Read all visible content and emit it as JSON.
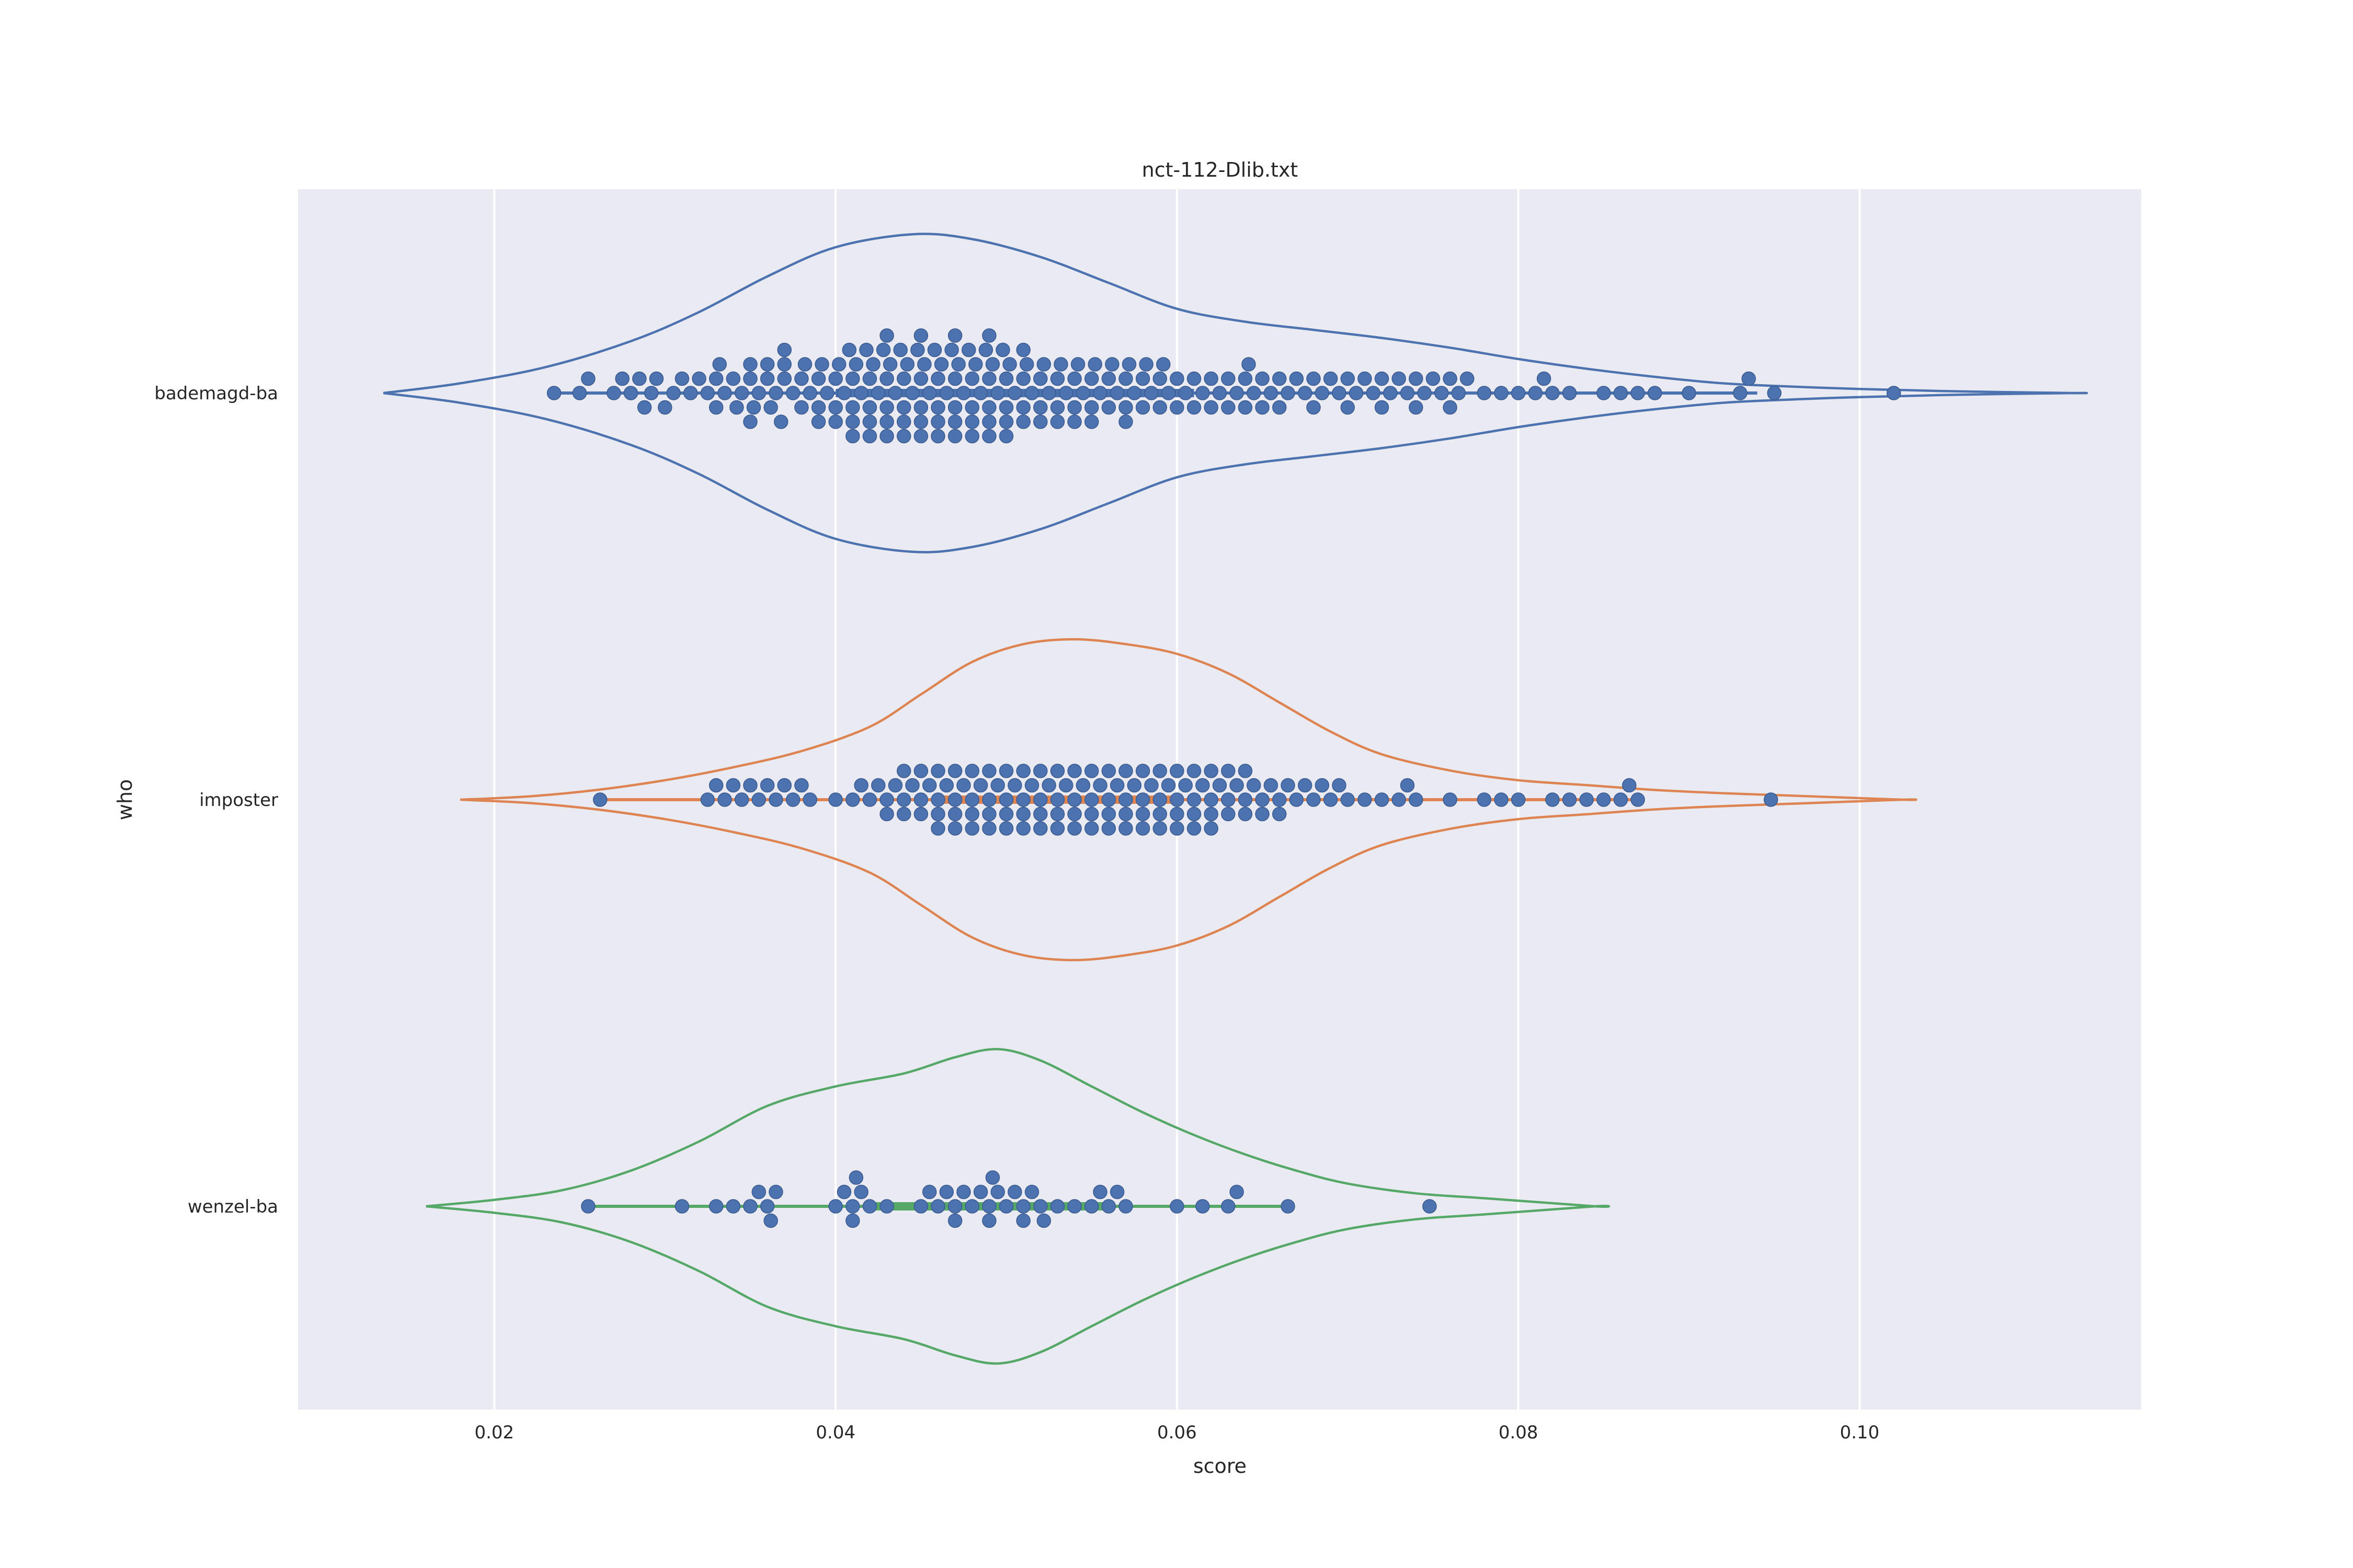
{
  "chart_data": {
    "type": "violin+swarm",
    "title": "nct-112-Dlib.txt",
    "xlabel": "score",
    "ylabel": "who",
    "xlim": [
      0.0085,
      0.1165
    ],
    "xticks": [
      0.02,
      0.04,
      0.06,
      0.08,
      0.1
    ],
    "xtick_labels": [
      "0.02",
      "0.04",
      "0.06",
      "0.08",
      "0.10"
    ],
    "grid": true,
    "point_color": "#4c72b0",
    "categories": [
      "bademagd-ba",
      "imposter",
      "wenzel-ba"
    ],
    "series": [
      {
        "name": "bademagd-ba",
        "color": "#4c72b0",
        "violin_range": [
          0.0135,
          0.1125
        ],
        "violin_profile": [
          [
            0.0135,
            0.0
          ],
          [
            0.018,
            0.06
          ],
          [
            0.023,
            0.16
          ],
          [
            0.028,
            0.32
          ],
          [
            0.032,
            0.5
          ],
          [
            0.036,
            0.72
          ],
          [
            0.04,
            0.9
          ],
          [
            0.0445,
            0.98
          ],
          [
            0.048,
            0.95
          ],
          [
            0.052,
            0.84
          ],
          [
            0.056,
            0.68
          ],
          [
            0.06,
            0.52
          ],
          [
            0.064,
            0.44
          ],
          [
            0.068,
            0.39
          ],
          [
            0.072,
            0.34
          ],
          [
            0.076,
            0.28
          ],
          [
            0.08,
            0.21
          ],
          [
            0.084,
            0.15
          ],
          [
            0.088,
            0.1
          ],
          [
            0.092,
            0.06
          ],
          [
            0.096,
            0.04
          ],
          [
            0.1,
            0.025
          ],
          [
            0.106,
            0.01
          ],
          [
            0.1125,
            0.0
          ]
        ],
        "quartiles": [
          0.04,
          0.049,
          0.061
        ],
        "points": [
          0.0235,
          0.025,
          0.0255,
          0.027,
          0.0275,
          0.028,
          0.0285,
          0.0288,
          0.0292,
          0.0295,
          0.03,
          0.0305,
          0.031,
          0.0315,
          0.032,
          0.0325,
          0.033,
          0.0332,
          0.0335,
          0.034,
          0.0342,
          0.0345,
          0.035,
          0.0352,
          0.0355,
          0.036,
          0.0362,
          0.0365,
          0.0368,
          0.037,
          0.0375,
          0.038,
          0.0382,
          0.0385,
          0.039,
          0.0392,
          0.0395,
          0.04,
          0.0402,
          0.0405,
          0.0408,
          0.041,
          0.0412,
          0.0415,
          0.0418,
          0.042,
          0.0422,
          0.0425,
          0.0428,
          0.043,
          0.0432,
          0.0435,
          0.0438,
          0.044,
          0.0442,
          0.0445,
          0.0448,
          0.045,
          0.0452,
          0.0455,
          0.0458,
          0.046,
          0.0462,
          0.0465,
          0.0468,
          0.047,
          0.0472,
          0.0475,
          0.0478,
          0.048,
          0.0482,
          0.0485,
          0.0488,
          0.049,
          0.0492,
          0.0495,
          0.0498,
          0.05,
          0.0502,
          0.0505,
          0.051,
          0.0512,
          0.0515,
          0.052,
          0.0522,
          0.0525,
          0.053,
          0.0532,
          0.0535,
          0.054,
          0.0542,
          0.0545,
          0.055,
          0.0552,
          0.0555,
          0.056,
          0.0562,
          0.0565,
          0.057,
          0.0572,
          0.0575,
          0.058,
          0.0582,
          0.0585,
          0.059,
          0.0592,
          0.0595,
          0.06,
          0.0605,
          0.061,
          0.0615,
          0.062,
          0.0625,
          0.063,
          0.0635,
          0.064,
          0.0642,
          0.0645,
          0.065,
          0.0655,
          0.066,
          0.0665,
          0.067,
          0.0675,
          0.068,
          0.0685,
          0.069,
          0.0695,
          0.07,
          0.0705,
          0.071,
          0.0715,
          0.072,
          0.0725,
          0.073,
          0.0735,
          0.074,
          0.0745,
          0.075,
          0.0755,
          0.076,
          0.0765,
          0.077,
          0.078,
          0.079,
          0.08,
          0.081,
          0.0815,
          0.082,
          0.083,
          0.085,
          0.086,
          0.087,
          0.088,
          0.09,
          0.093,
          0.0935,
          0.095,
          0.102,
          0.036,
          0.038,
          0.04,
          0.042,
          0.044,
          0.046,
          0.048,
          0.05,
          0.052,
          0.054,
          0.056,
          0.058,
          0.04,
          0.042,
          0.044,
          0.046,
          0.048,
          0.05,
          0.052,
          0.054,
          0.043,
          0.045,
          0.047,
          0.049,
          0.051,
          0.053,
          0.041,
          0.043,
          0.045,
          0.047,
          0.049,
          0.042,
          0.044,
          0.046,
          0.048,
          0.05,
          0.055,
          0.057,
          0.059,
          0.061,
          0.063,
          0.065,
          0.06,
          0.062,
          0.064,
          0.066,
          0.068,
          0.07,
          0.072,
          0.074,
          0.076,
          0.035,
          0.037,
          0.039,
          0.041,
          0.043,
          0.045,
          0.047,
          0.049,
          0.051,
          0.053,
          0.055,
          0.057,
          0.033,
          0.035,
          0.037,
          0.039,
          0.041,
          0.043,
          0.045,
          0.047,
          0.049,
          0.051
        ]
      },
      {
        "name": "imposter",
        "color": "#dd8452",
        "violin_range": [
          0.018,
          0.1025
        ],
        "violin_profile": [
          [
            0.018,
            0.0
          ],
          [
            0.022,
            0.02
          ],
          [
            0.026,
            0.06
          ],
          [
            0.03,
            0.12
          ],
          [
            0.034,
            0.2
          ],
          [
            0.038,
            0.3
          ],
          [
            0.042,
            0.45
          ],
          [
            0.045,
            0.65
          ],
          [
            0.048,
            0.85
          ],
          [
            0.051,
            0.96
          ],
          [
            0.054,
            0.99
          ],
          [
            0.057,
            0.96
          ],
          [
            0.06,
            0.9
          ],
          [
            0.063,
            0.78
          ],
          [
            0.066,
            0.6
          ],
          [
            0.069,
            0.42
          ],
          [
            0.072,
            0.28
          ],
          [
            0.076,
            0.18
          ],
          [
            0.08,
            0.12
          ],
          [
            0.084,
            0.09
          ],
          [
            0.088,
            0.06
          ],
          [
            0.092,
            0.04
          ],
          [
            0.096,
            0.025
          ],
          [
            0.1025,
            0.0
          ]
        ],
        "quartiles": [
          0.046,
          0.053,
          0.06
        ],
        "points": [
          0.0262,
          0.0325,
          0.033,
          0.0335,
          0.034,
          0.0345,
          0.035,
          0.0355,
          0.036,
          0.0365,
          0.037,
          0.0375,
          0.038,
          0.0385,
          0.04,
          0.041,
          0.0415,
          0.042,
          0.0425,
          0.043,
          0.0435,
          0.044,
          0.0445,
          0.045,
          0.0455,
          0.046,
          0.0465,
          0.047,
          0.0475,
          0.048,
          0.0485,
          0.049,
          0.0495,
          0.05,
          0.0505,
          0.051,
          0.0515,
          0.052,
          0.0525,
          0.053,
          0.0535,
          0.054,
          0.0545,
          0.055,
          0.0555,
          0.056,
          0.0565,
          0.057,
          0.0575,
          0.058,
          0.0585,
          0.059,
          0.0595,
          0.06,
          0.0605,
          0.061,
          0.0615,
          0.062,
          0.0625,
          0.063,
          0.0635,
          0.064,
          0.0645,
          0.065,
          0.0655,
          0.066,
          0.0665,
          0.067,
          0.0675,
          0.068,
          0.0685,
          0.069,
          0.0695,
          0.07,
          0.071,
          0.072,
          0.073,
          0.0735,
          0.074,
          0.076,
          0.078,
          0.079,
          0.08,
          0.082,
          0.083,
          0.084,
          0.085,
          0.086,
          0.0865,
          0.087,
          0.0948,
          0.043,
          0.045,
          0.047,
          0.049,
          0.051,
          0.053,
          0.055,
          0.057,
          0.059,
          0.061,
          0.063,
          0.065,
          0.044,
          0.046,
          0.048,
          0.05,
          0.052,
          0.054,
          0.056,
          0.058,
          0.06,
          0.062,
          0.064,
          0.046,
          0.048,
          0.05,
          0.052,
          0.054,
          0.056,
          0.058,
          0.06,
          0.062,
          0.047,
          0.049,
          0.051,
          0.053,
          0.055,
          0.057,
          0.059,
          0.061,
          0.063,
          0.045,
          0.047,
          0.049,
          0.051,
          0.053,
          0.055,
          0.057,
          0.059,
          0.061,
          0.044,
          0.046,
          0.048,
          0.05,
          0.052,
          0.054,
          0.056,
          0.058,
          0.06,
          0.062,
          0.064,
          0.066
        ]
      },
      {
        "name": "wenzel-ba",
        "color": "#55a868",
        "violin_range": [
          0.016,
          0.0845
        ],
        "violin_profile": [
          [
            0.016,
            0.0
          ],
          [
            0.02,
            0.04
          ],
          [
            0.024,
            0.1
          ],
          [
            0.028,
            0.22
          ],
          [
            0.032,
            0.4
          ],
          [
            0.036,
            0.62
          ],
          [
            0.04,
            0.74
          ],
          [
            0.044,
            0.82
          ],
          [
            0.047,
            0.92
          ],
          [
            0.0495,
            0.97
          ],
          [
            0.052,
            0.9
          ],
          [
            0.055,
            0.74
          ],
          [
            0.058,
            0.58
          ],
          [
            0.061,
            0.44
          ],
          [
            0.064,
            0.32
          ],
          [
            0.067,
            0.22
          ],
          [
            0.07,
            0.14
          ],
          [
            0.074,
            0.08
          ],
          [
            0.078,
            0.05
          ],
          [
            0.0845,
            0.0
          ]
        ],
        "quartiles": [
          0.042,
          0.048,
          0.056
        ],
        "points": [
          0.0255,
          0.031,
          0.033,
          0.034,
          0.035,
          0.0355,
          0.036,
          0.0362,
          0.0365,
          0.04,
          0.0405,
          0.041,
          0.0412,
          0.0415,
          0.042,
          0.045,
          0.0455,
          0.046,
          0.0465,
          0.047,
          0.0475,
          0.048,
          0.0485,
          0.049,
          0.0492,
          0.0495,
          0.05,
          0.0505,
          0.051,
          0.0515,
          0.052,
          0.0522,
          0.053,
          0.054,
          0.055,
          0.0555,
          0.056,
          0.0565,
          0.057,
          0.06,
          0.0615,
          0.063,
          0.0635,
          0.0665,
          0.0748,
          0.049,
          0.051,
          0.047,
          0.043,
          0.041
        ]
      }
    ]
  }
}
